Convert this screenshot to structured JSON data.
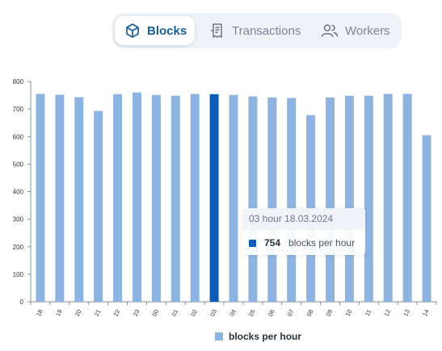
{
  "tabs": [
    {
      "label": "Blocks",
      "icon": "cube-icon",
      "active": true
    },
    {
      "label": "Transactions",
      "icon": "receipt-icon",
      "active": false
    },
    {
      "label": "Workers",
      "icon": "users-icon",
      "active": false
    }
  ],
  "colors": {
    "bar": "#8db4e0",
    "highlight": "#0d5cb5",
    "accent": "#1a5f9a"
  },
  "tooltip": {
    "title": "03 hour 18.03.2024",
    "value": "754",
    "series_label": "blocks per hour"
  },
  "legend": {
    "label": "blocks per hour"
  },
  "chart_data": {
    "type": "bar",
    "categories": [
      "18",
      "19",
      "20",
      "21",
      "22",
      "23",
      "00",
      "01",
      "02",
      "03",
      "04",
      "05",
      "06",
      "07",
      "08",
      "09",
      "10",
      "11",
      "12",
      "13",
      "14"
    ],
    "series": [
      {
        "name": "blocks per hour",
        "values": [
          755,
          752,
          743,
          693,
          754,
          760,
          751,
          748,
          755,
          754,
          751,
          746,
          742,
          740,
          678,
          742,
          748,
          748,
          755,
          755,
          605
        ]
      }
    ],
    "highlight_index": 9,
    "ylim": [
      0,
      800
    ],
    "yticks": [
      0,
      100,
      200,
      300,
      400,
      500,
      600,
      700,
      800
    ],
    "grid": false,
    "legend_position": "bottom"
  }
}
